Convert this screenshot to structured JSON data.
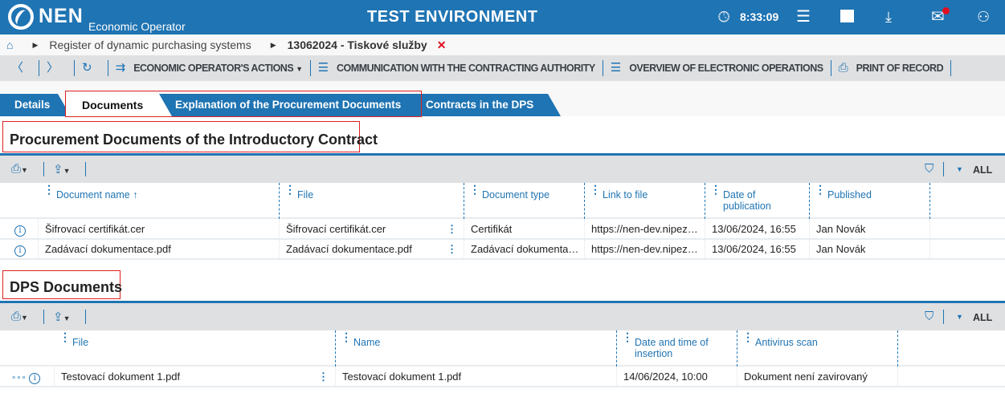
{
  "header": {
    "logo": "NEN",
    "subtitle": "Economic Operator",
    "title": "TEST ENVIRONMENT",
    "time": "8:33:09",
    "icons": [
      "clock-icon",
      "menu-icon",
      "calendar-icon",
      "inbox-download-icon",
      "mail-icon",
      "user-icon"
    ],
    "brand_color": "#1f74b3",
    "notification_color": "#e01020"
  },
  "breadcrumb": {
    "items": [
      "Register of dynamic purchasing systems",
      "13062024 - Tiskové služby"
    ],
    "close": "✕"
  },
  "toolbar": {
    "actions": "ECONOMIC OPERATOR'S ACTIONS",
    "communication": "COMMUNICATION WITH THE CONTRACTING AUTHORITY",
    "overview": "OVERVIEW OF ELECTRONIC OPERATIONS",
    "print": "PRINT OF RECORD"
  },
  "tabs": [
    {
      "label": "Details"
    },
    {
      "label": "Documents",
      "active": true
    },
    {
      "label": "Explanation of the Procurement Documents"
    },
    {
      "label": "Contracts in the DPS"
    }
  ],
  "section1": {
    "title": "Procurement Documents of the Introductory Contract",
    "all": "ALL",
    "columns": [
      "Document name",
      "File",
      "Document type",
      "Link to file",
      "Date of publication",
      "Published"
    ],
    "rows": [
      [
        "Šifrovací certifikát.cer",
        "Šifrovací certifikát.cer",
        "Certifikát",
        "https://nen-dev.nipez…",
        "13/06/2024, 16:55",
        "Jan Novák"
      ],
      [
        "Zadávací dokumentace.pdf",
        "Zadávací dokumentace.pdf",
        "Zadávací dokumenta…",
        "https://nen-dev.nipez…",
        "13/06/2024, 16:55",
        "Jan Novák"
      ]
    ]
  },
  "section2": {
    "title": "DPS Documents",
    "all": "ALL",
    "columns": [
      "File",
      "Name",
      "Date and time of insertion",
      "Antivirus scan"
    ],
    "rows": [
      [
        "Testovací dokument 1.pdf",
        "Testovací dokument 1.pdf",
        "14/06/2024, 10:00",
        "Dokument není zavirovaný"
      ]
    ]
  }
}
